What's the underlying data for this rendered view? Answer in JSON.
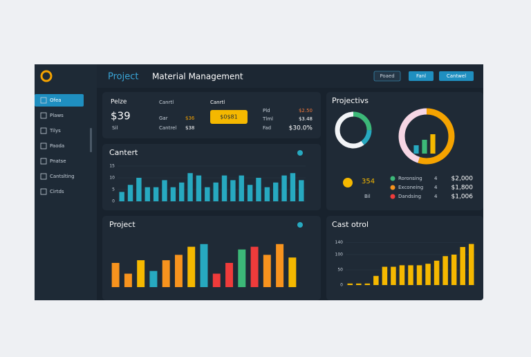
{
  "header": {
    "title": "Project",
    "subtitle": "Material Management",
    "buttons": [
      "Poaed",
      "Fanl",
      "Cantwel"
    ]
  },
  "sidebar": {
    "items": [
      "Ofea",
      "Plaws",
      "Tilys",
      "Paoda",
      "Pnatse",
      "Cantslting",
      "Cirtds"
    ]
  },
  "summary": {
    "label": "Pelze",
    "value": "$39",
    "note": "Sil",
    "mid_title": "Canrtl",
    "mid_rows": [
      [
        "Gar",
        "$36"
      ],
      [
        "Cantrel",
        "$38"
      ]
    ],
    "badge_title": "Canrtl",
    "badge": "$0$81",
    "list": [
      [
        "Pld",
        "$2.50"
      ],
      [
        "Tlml",
        "$3.48"
      ],
      [
        "Fad",
        "$30.0%"
      ]
    ]
  },
  "charts": [
    {
      "type": "bar",
      "title": "Cantert",
      "color": "#27a9c0",
      "values": [
        4,
        7,
        10,
        6,
        6,
        9,
        6,
        8,
        12,
        11,
        6,
        8,
        11,
        9,
        11,
        7,
        10,
        6,
        8,
        11,
        12,
        9
      ],
      "ylim": [
        0,
        15
      ],
      "yticks": [
        0,
        5,
        10,
        15
      ]
    },
    {
      "type": "bar",
      "title": "Project",
      "values": [
        9,
        5,
        10,
        6,
        10,
        12,
        15,
        16,
        5,
        9,
        14,
        15,
        12,
        16,
        11
      ],
      "colors": [
        "#f7931e",
        "#f7931e",
        "#f5b800",
        "#27a9c0",
        "#f7931e",
        "#f7931e",
        "#f5b800",
        "#27a9c0",
        "#ef3b3b",
        "#ef3b3b",
        "#3cb878",
        "#ef3b3b",
        "#f7931e",
        "#f7931e",
        "#f5b800"
      ],
      "ylim": [
        0,
        18
      ]
    },
    {
      "type": "bar",
      "title": "Cast otrol",
      "color": "#f5b800",
      "values": [
        5,
        5,
        5,
        30,
        60,
        60,
        65,
        65,
        65,
        70,
        80,
        95,
        100,
        125,
        135
      ],
      "ylim": [
        0,
        150
      ],
      "yticks": [
        0,
        50,
        100,
        140
      ]
    }
  ],
  "projects": {
    "title": "Projectivs",
    "small_donut": {
      "type": "pie",
      "values": [
        25,
        15,
        60
      ],
      "colors": [
        "#3cb878",
        "#27a9c0",
        "#f2f4f7"
      ]
    },
    "big_donut": {
      "type": "pie",
      "values": [
        55,
        45
      ],
      "colors": [
        "#f5a300",
        "#f6d6e4"
      ]
    },
    "mini_bars": {
      "type": "bar",
      "values": [
        3,
        5,
        7
      ],
      "colors": [
        "#27a9c0",
        "#3cb878",
        "#f5b800"
      ],
      "ylim": [
        0,
        8
      ]
    },
    "stat": "354",
    "stat_label": "Bil",
    "rows": [
      {
        "name": "Roronsing",
        "count": "4",
        "amount": "$2,000",
        "color": "#3cb878"
      },
      {
        "name": "Exconeing",
        "count": "4",
        "amount": "$1,800",
        "color": "#f7931e"
      },
      {
        "name": "Dandsing",
        "count": "4",
        "amount": "$1,006",
        "color": "#ef3b3b"
      }
    ]
  }
}
